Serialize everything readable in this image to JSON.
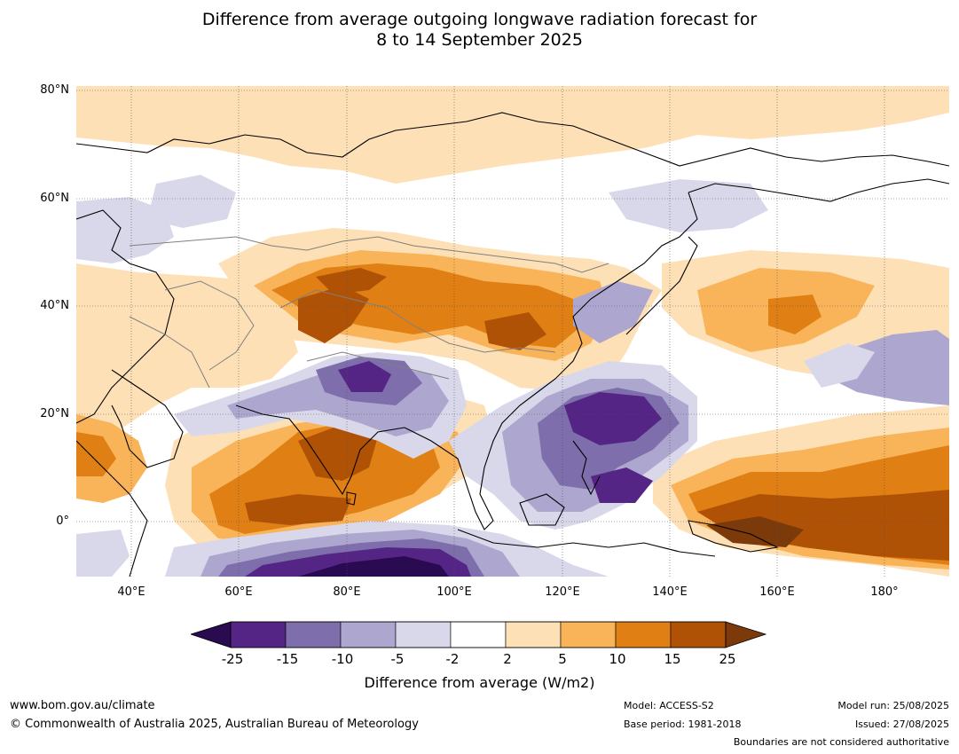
{
  "title": {
    "line1": "Difference from average outgoing longwave radiation forecast for",
    "line2": "8 to 14 September 2025"
  },
  "map": {
    "latitude_labels": [
      "80°N",
      "60°N",
      "40°N",
      "20°N",
      "0°"
    ],
    "longitude_labels": [
      "40°E",
      "60°E",
      "80°E",
      "100°E",
      "120°E",
      "140°E",
      "160°E",
      "180°"
    ],
    "gridlines": "dotted"
  },
  "colorbar": {
    "ticks": [
      "-25",
      "-15",
      "-10",
      "-5",
      "-2",
      "2",
      "5",
      "10",
      "15",
      "25"
    ],
    "colors": [
      "#2a0a50",
      "#552585",
      "#7e6eab",
      "#ada7cf",
      "#d9d8eb",
      "#ffffff",
      "#fde0b6",
      "#f9b45a",
      "#df7f14",
      "#b05206",
      "#7c3a0b"
    ],
    "label": "Difference from average (W/m2)"
  },
  "footer": {
    "website": "www.bom.gov.au/climate",
    "copyright": "© Commonwealth of Australia 2025, Australian Bureau of Meteorology",
    "model": "Model: ACCESS-S2",
    "base_period": "Base period: 1981-2018",
    "model_run": "Model run: 25/08/2025",
    "issued": "Issued: 27/08/2025",
    "disclaimer": "Boundaries are not considered authoritative"
  }
}
